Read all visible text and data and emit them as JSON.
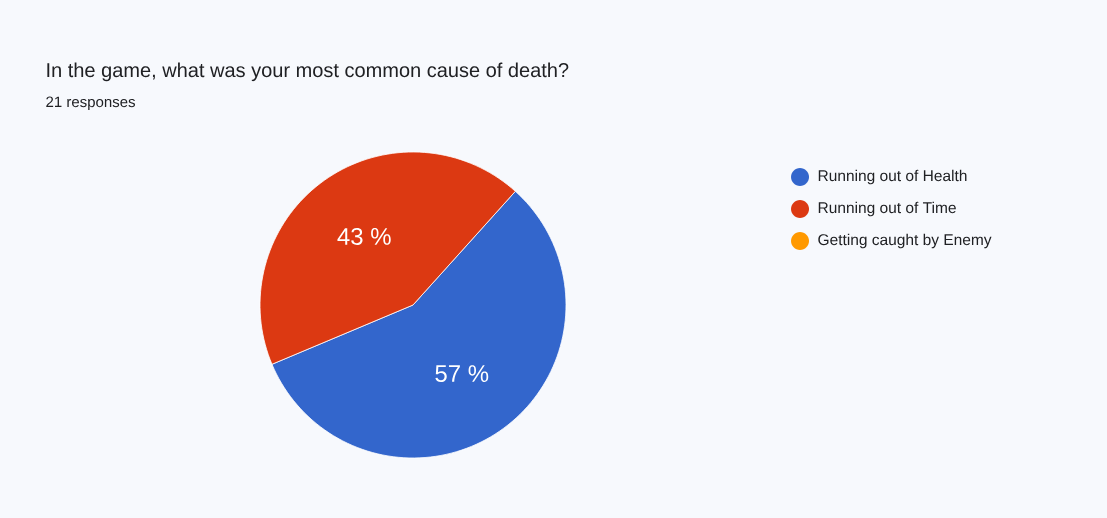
{
  "chart_data": {
    "type": "pie",
    "title": "In the game, what was your most common cause of death?",
    "subtitle": "21 responses",
    "categories": [
      "Running out of Health",
      "Running out of Time",
      "Getting caught by Enemy"
    ],
    "values": [
      57,
      43,
      0
    ],
    "colors": [
      "#3366cc",
      "#dc3912",
      "#ff9900"
    ],
    "value_labels": [
      "57 %",
      "43 %",
      null
    ],
    "legend": "right"
  }
}
